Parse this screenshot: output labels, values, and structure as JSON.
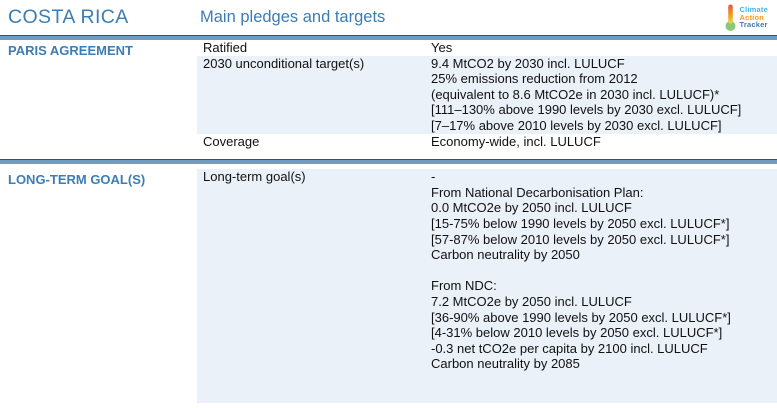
{
  "header": {
    "country": "COSTA RICA",
    "title": "Main pledges and targets",
    "logo": {
      "line1": "Climate",
      "line2": "Action",
      "line3": "Tracker"
    }
  },
  "colors": {
    "accent_blue_text": "#3c7db4",
    "divider_bar": "#6f9cc3",
    "divider_edge": "#2d5574",
    "shaded_row": "#ebf1f8",
    "logo_cyan": "#45b5e0",
    "logo_orange": "#f49c1c",
    "thermo_bulb_green": "#8bc878",
    "thermo_red": "#e65548",
    "thermo_yellow": "#f5d44a"
  },
  "sections": [
    {
      "id": "paris-agreement",
      "label": "PARIS AGREEMENT",
      "rows": [
        {
          "label": "Ratified",
          "shaded": false,
          "fill": false,
          "lines": [
            "Yes"
          ]
        },
        {
          "label": "2030 unconditional target(s)",
          "shaded": true,
          "fill": false,
          "lines": [
            "9.4 MtCO2 by 2030 incl. LULUCF",
            "25% emissions reduction from 2012",
            "(equivalent to 8.6 MtCO2e in 2030 incl. LULUCF)*",
            "[111–130% above 1990 levels by 2030 excl. LULUCF]",
            "[7–17% above 2010 levels by 2030 excl. LULUCF]"
          ]
        },
        {
          "label": "Coverage",
          "shaded": false,
          "fill": false,
          "lines": [
            "Economy-wide, incl. LULUCF"
          ]
        }
      ]
    },
    {
      "id": "long-term-goals",
      "label": "LONG-TERM GOAL(S)",
      "rows": [
        {
          "label": "Long-term goal(s)",
          "shaded": true,
          "fill": true,
          "lines": [
            "-",
            "From National Decarbonisation Plan:",
            "0.0 MtCO2e by 2050 incl. LULUCF",
            "[15-75% below 1990 levels by 2050 excl. LULUCF*]",
            "[57-87% below 2010 levels by 2050 excl. LULUCF*]",
            "Carbon neutrality by 2050",
            "",
            "From NDC:",
            "7.2 MtCO2e by 2050 incl. LULUCF",
            "[36-90% above 1990 levels by 2050 excl. LULUCF*]",
            "[4-31% below 2010 levels by 2050 excl. LULUCF*]",
            "-0.3 net tCO2e per capita by 2100 incl. LULUCF",
            "Carbon neutrality by 2085"
          ]
        }
      ]
    }
  ]
}
